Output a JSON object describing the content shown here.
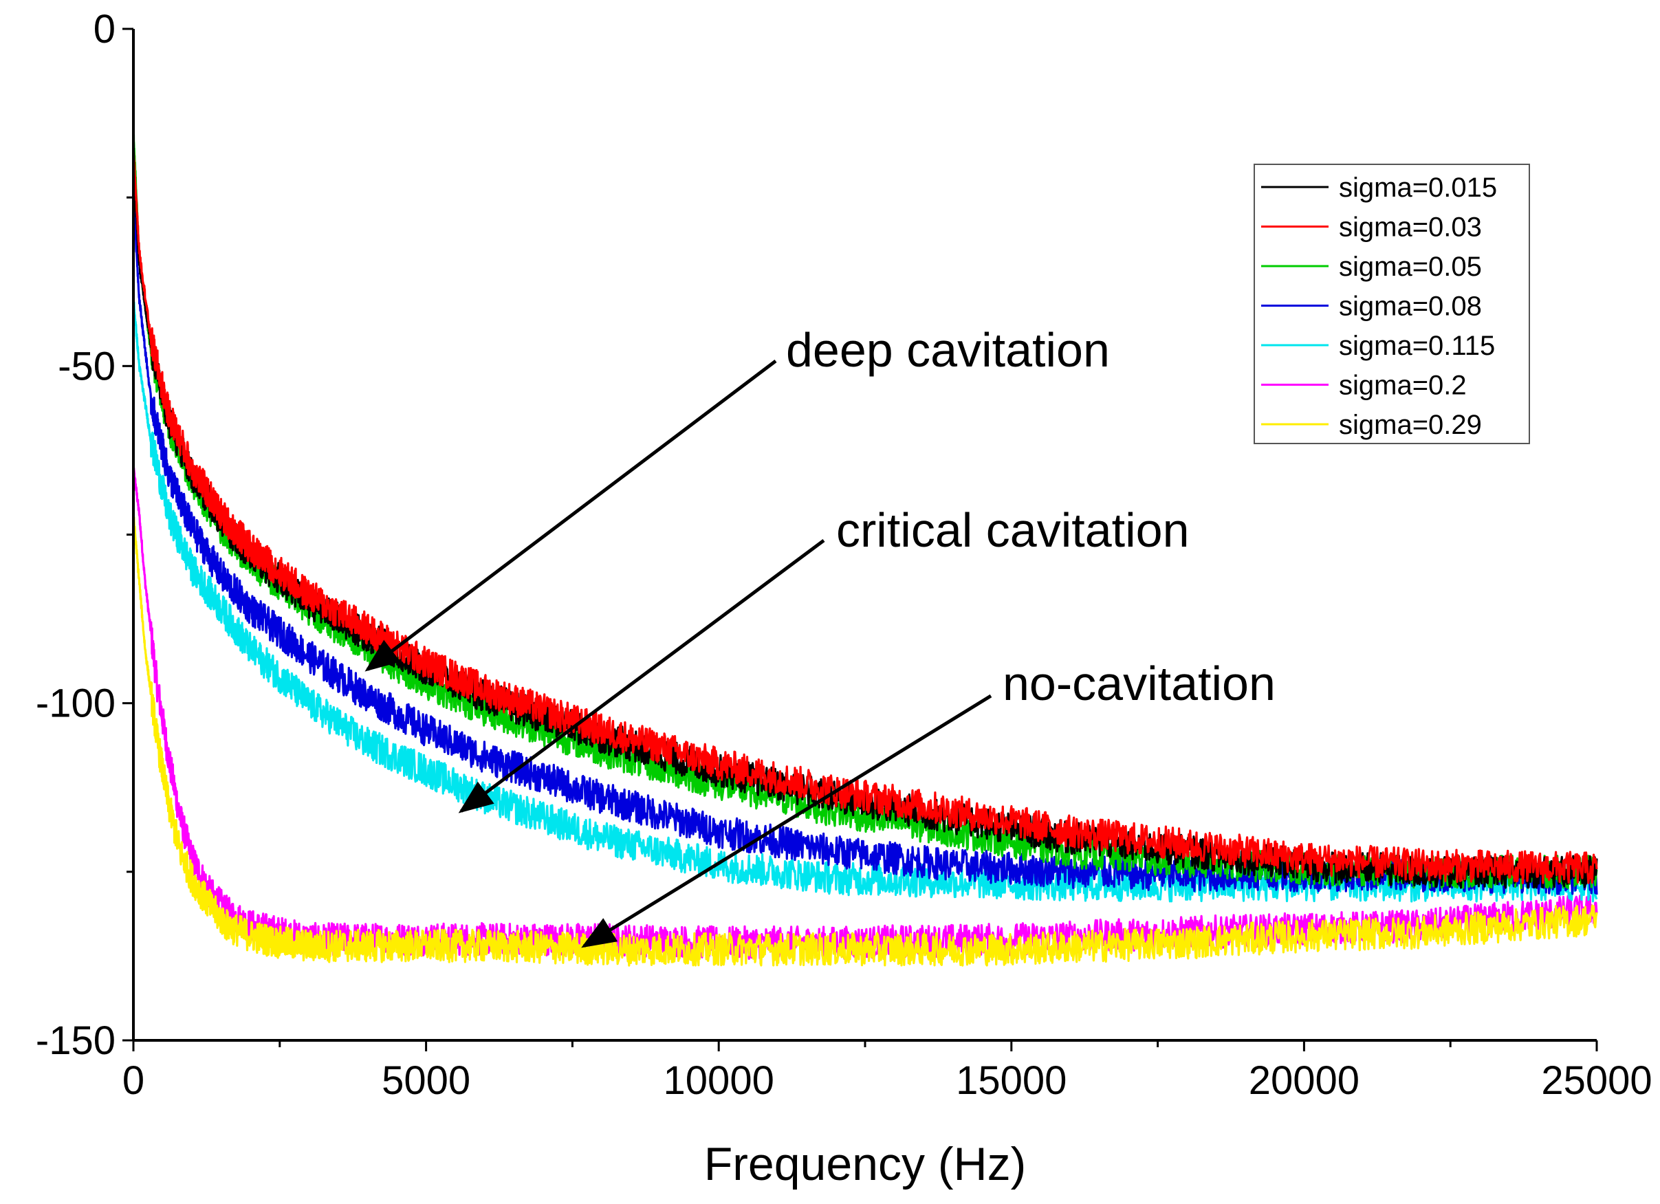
{
  "chart_data": {
    "type": "line",
    "title": "",
    "xlabel": "Frequency (Hz)",
    "ylabel": "",
    "xlim": [
      0,
      25000
    ],
    "ylim": [
      -150,
      0
    ],
    "x_ticks": [
      0,
      5000,
      10000,
      15000,
      20000,
      25000
    ],
    "x_tick_labels": [
      "0",
      "5000",
      "10000",
      "15000",
      "20000",
      "25000"
    ],
    "y_ticks": [
      0,
      -50,
      -100,
      -150
    ],
    "y_tick_labels": [
      "0",
      "-50",
      "-100",
      "-150"
    ],
    "grid": false,
    "legend_position": "top-right",
    "series": [
      {
        "name": "sigma=0.015",
        "color": "#000000",
        "x": [
          0,
          100,
          300,
          600,
          1000,
          1500,
          2000,
          3000,
          4000,
          5000,
          6000,
          7000,
          8000,
          10000,
          12000,
          14000,
          16000,
          18000,
          20000,
          22000,
          25000
        ],
        "y": [
          -20,
          -35,
          -47,
          -58,
          -66,
          -73,
          -78,
          -85,
          -90,
          -95,
          -99,
          -102,
          -105,
          -110,
          -114,
          -117,
          -120,
          -122,
          -124,
          -125,
          -125
        ]
      },
      {
        "name": "sigma=0.03",
        "color": "#ff0000",
        "x": [
          0,
          100,
          300,
          600,
          1000,
          1500,
          2000,
          3000,
          4000,
          5000,
          6000,
          7000,
          8000,
          10000,
          12000,
          14000,
          16000,
          18000,
          20000,
          22000,
          25000
        ],
        "y": [
          -18,
          -33,
          -46,
          -57,
          -65,
          -72,
          -77,
          -84,
          -89,
          -94,
          -98,
          -101,
          -104,
          -109,
          -113,
          -116,
          -119,
          -121,
          -123,
          -124,
          -124.5
        ]
      },
      {
        "name": "sigma=0.05",
        "color": "#00cc00",
        "x": [
          0,
          100,
          300,
          600,
          1000,
          1500,
          2000,
          3000,
          4000,
          5000,
          6000,
          7000,
          8000,
          10000,
          12000,
          14000,
          16000,
          18000,
          20000,
          22000,
          25000
        ],
        "y": [
          -15,
          -34,
          -48,
          -59,
          -67,
          -74,
          -79,
          -86,
          -92,
          -97,
          -101,
          -104,
          -107,
          -112,
          -116,
          -119,
          -122,
          -123.5,
          -124.5,
          -125,
          -125
        ]
      },
      {
        "name": "sigma=0.08",
        "color": "#0000dd",
        "x": [
          0,
          100,
          300,
          600,
          1000,
          1500,
          2000,
          3000,
          4000,
          5000,
          6000,
          7000,
          8000,
          10000,
          12000,
          14000,
          16000,
          18000,
          20000,
          22000,
          25000
        ],
        "y": [
          -25,
          -40,
          -55,
          -66,
          -74,
          -81,
          -86,
          -93,
          -99,
          -104,
          -108,
          -111,
          -114,
          -119,
          -122,
          -124,
          -125,
          -125.5,
          -125.5,
          -125.5,
          -126
        ]
      },
      {
        "name": "sigma=0.115",
        "color": "#00e5ee",
        "x": [
          0,
          100,
          300,
          600,
          1000,
          1500,
          2000,
          3000,
          4000,
          5000,
          6000,
          7000,
          8000,
          10000,
          12000,
          14000,
          16000,
          18000,
          20000,
          22000,
          25000
        ],
        "y": [
          -40,
          -50,
          -61,
          -72,
          -80,
          -86,
          -92,
          -100,
          -106,
          -110,
          -114,
          -117,
          -120,
          -124,
          -126,
          -126.5,
          -127,
          -127,
          -127,
          -127,
          -127
        ]
      },
      {
        "name": "sigma=0.2",
        "color": "#ff00ff",
        "x": [
          0,
          100,
          200,
          400,
          600,
          800,
          1000,
          1300,
          1600,
          2000,
          2500,
          3000,
          4000,
          6000,
          8000,
          10000,
          12000,
          15000,
          18000,
          20000,
          22000,
          25000
        ],
        "y": [
          -65,
          -72,
          -82,
          -97,
          -108,
          -117,
          -123,
          -128,
          -131,
          -133,
          -134,
          -135,
          -135,
          -135,
          -135,
          -135.5,
          -135.5,
          -135,
          -134,
          -133.5,
          -133,
          -130.5
        ]
      },
      {
        "name": "sigma=0.29",
        "color": "#ffee00",
        "x": [
          0,
          100,
          200,
          400,
          600,
          800,
          1000,
          1300,
          1600,
          2000,
          2500,
          3000,
          4000,
          6000,
          8000,
          10000,
          12000,
          15000,
          18000,
          20000,
          22000,
          25000
        ],
        "y": [
          -72,
          -82,
          -92,
          -105,
          -115,
          -122,
          -126,
          -130,
          -133,
          -134.5,
          -135.5,
          -136,
          -136,
          -136,
          -136.5,
          -136.5,
          -136.5,
          -136.5,
          -135.5,
          -134.5,
          -134,
          -132
        ]
      }
    ],
    "annotations": [
      {
        "text": "deep cavitation",
        "arrow_to_x": 4000,
        "arrow_to_y": -95
      },
      {
        "text": "critical cavitation",
        "arrow_to_x": 5600,
        "arrow_to_y": -116
      },
      {
        "text": "no-cavitation",
        "arrow_to_x": 7700,
        "arrow_to_y": -136
      }
    ]
  }
}
